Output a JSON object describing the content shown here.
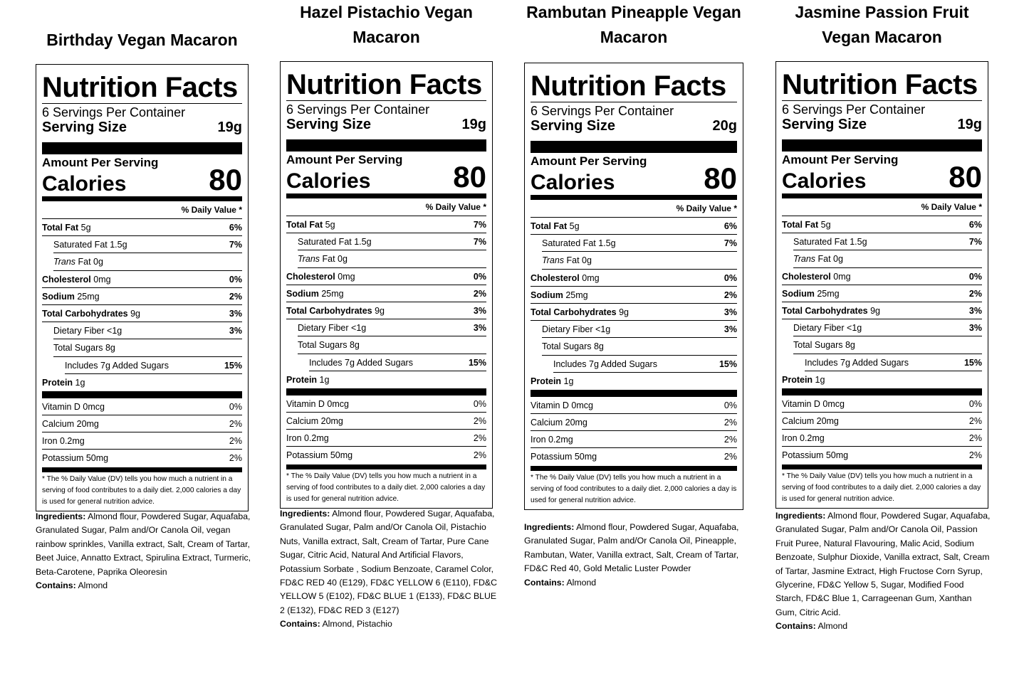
{
  "nutrition_facts_heading": "Nutrition Facts",
  "servings_per_container": "6 Servings Per Container",
  "serving_size_label": "Serving Size",
  "amount_per_serving": "Amount Per Serving",
  "calories_label": "Calories",
  "daily_value_heading": "% Daily Value *",
  "footnote": "* The % Daily Value (DV) tells you how much a nutrient in a serving of food contributes to a daily diet. 2,000 calories a day is used for general nutrition advice.",
  "ingredients_label": "Ingredients:",
  "contains_label": "Contains:",
  "nutrients": [
    {
      "name": "Total Fat",
      "amount": "5g",
      "pct": "6%"
    },
    {
      "name": "Saturated Fat",
      "amount": "1.5g",
      "pct": "7%"
    },
    {
      "name": "Trans",
      "amount": "Fat 0g",
      "pct": ""
    },
    {
      "name": "Cholesterol",
      "amount": "0mg",
      "pct": "0%"
    },
    {
      "name": "Sodium",
      "amount": "25mg",
      "pct": "2%"
    },
    {
      "name": "Total Carbohydrates",
      "amount": "9g",
      "pct": "3%"
    },
    {
      "name": "Dietary Fiber",
      "amount": "<1g",
      "pct": "3%"
    },
    {
      "name": "Total Sugars",
      "amount": "8g",
      "pct": ""
    },
    {
      "name": "Includes 7g Added Sugars",
      "amount": "",
      "pct": "15%"
    },
    {
      "name": "Protein",
      "amount": "1g",
      "pct": ""
    }
  ],
  "vitamins": [
    {
      "name": "Vitamin D 0mcg",
      "pct": "0%"
    },
    {
      "name": "Calcium 20mg",
      "pct": "2%"
    },
    {
      "name": "Iron 0.2mg",
      "pct": "2%"
    },
    {
      "name": "Potassium 50mg",
      "pct": "2%"
    }
  ],
  "products": [
    {
      "title": "Birthday Vegan Macaron",
      "serving_size": "19g",
      "calories": "80",
      "total_fat_pct": "6%",
      "ingredients": "Almond flour, Powdered Sugar, Aquafaba, Granulated Sugar, Palm and/Or Canola Oil, vegan rainbow sprinkles, Vanilla extract, Salt, Cream of Tartar, Beet Juice, Annatto Extract, Spirulina Extract, Turmeric, Beta-Carotene, Paprika Oleoresin",
      "contains": "Almond"
    },
    {
      "title": "Hazel Pistachio Vegan Macaron",
      "serving_size": "19g",
      "calories": "80",
      "total_fat_pct": "7%",
      "ingredients": "Almond flour, Powdered Sugar, Aquafaba, Granulated Sugar, Palm and/Or Canola Oil, Pistachio Nuts, Vanilla extract, Salt, Cream of Tartar, Pure Cane Sugar, Citric Acid, Natural And Artificial Flavors, Potassium Sorbate , Sodium Benzoate, Caramel Color, FD&C RED 40 (E129), FD&C YELLOW 6 (E110), FD&C YELLOW 5 (E102), FD&C BLUE 1 (E133), FD&C BLUE 2 (E132), FD&C RED 3 (E127)",
      "contains": "Almond, Pistachio"
    },
    {
      "title": "Rambutan Pineapple Vegan Macaron",
      "serving_size": "20g",
      "calories": "80",
      "total_fat_pct": "6%",
      "ingredients": "Almond flour, Powdered Sugar, Aquafaba, Granulated Sugar, Palm and/Or Canola Oil, Pineapple, Rambutan, Water, Vanilla extract, Salt, Cream of Tartar, FD&C Red 40, Gold Metalic Luster Powder",
      "contains": "Almond"
    },
    {
      "title": "Jasmine Passion Fruit Vegan Macaron",
      "serving_size": "19g",
      "calories": "80",
      "total_fat_pct": "6%",
      "ingredients": "Almond flour, Powdered Sugar, Aquafaba, Granulated Sugar, Palm and/Or Canola Oil, Passion Fruit Puree, Natural Flavouring, Malic Acid, Sodium Benzoate, Sulphur Dioxide, Vanilla extract, Salt, Cream of Tartar, Jasmine Extract, High Fructose Corn Syrup, Glycerine, FD&C Yellow 5, Sugar, Modified Food Starch, FD&C Blue 1, Carrageenan Gum, Xanthan Gum, Citric Acid.",
      "contains": "Almond"
    }
  ]
}
